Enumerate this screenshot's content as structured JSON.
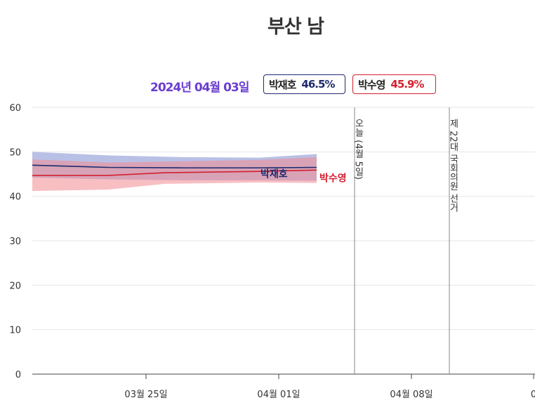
{
  "title": "부산 남",
  "header": {
    "date": "2024년 04월 03일",
    "badges": [
      {
        "name": "박재호",
        "value": "46.5%",
        "color": "#1d2a6e"
      },
      {
        "name": "박수영",
        "value": "45.9%",
        "color": "#d4202f"
      }
    ]
  },
  "chart_data": {
    "type": "line",
    "title": "부산 남",
    "ylim": [
      0,
      60
    ],
    "yticks": [
      0,
      10,
      20,
      30,
      40,
      50,
      60
    ],
    "xlim": [
      "2024-03-19",
      "2024-04-13"
    ],
    "xticks": [
      {
        "date": "2024-03-25",
        "label": "03월 25일"
      },
      {
        "date": "2024-04-01",
        "label": "04월 01일"
      },
      {
        "date": "2024-04-08",
        "label": "04월 08일"
      },
      {
        "date": "2024-04-15",
        "label": "0"
      }
    ],
    "grid": true,
    "series": [
      {
        "name": "박재호",
        "color": "#1d2a6e",
        "band_color": "#7f8dd0",
        "x": [
          "2024-03-19",
          "2024-03-23",
          "2024-03-27",
          "2024-03-31",
          "2024-04-03"
        ],
        "values": [
          47.0,
          46.5,
          46.4,
          46.4,
          46.5
        ],
        "lower": [
          44.2,
          43.8,
          43.6,
          43.6,
          43.5
        ],
        "upper": [
          50.0,
          49.2,
          48.8,
          48.7,
          49.5
        ]
      },
      {
        "name": "박수영",
        "color": "#d4202f",
        "band_color": "#f28a92",
        "x": [
          "2024-03-19",
          "2024-03-23",
          "2024-03-26",
          "2024-03-31",
          "2024-04-03"
        ],
        "values": [
          44.7,
          44.7,
          45.3,
          45.6,
          45.9
        ],
        "lower": [
          41.2,
          41.5,
          42.8,
          43.1,
          43.0
        ],
        "upper": [
          48.3,
          47.6,
          47.8,
          48.2,
          48.8
        ]
      }
    ],
    "events": [
      {
        "date": "2024-04-05",
        "label": "오늘 (4월 5일)"
      },
      {
        "date": "2024-04-10",
        "label": "제 22대 국회의원 선거"
      }
    ]
  }
}
